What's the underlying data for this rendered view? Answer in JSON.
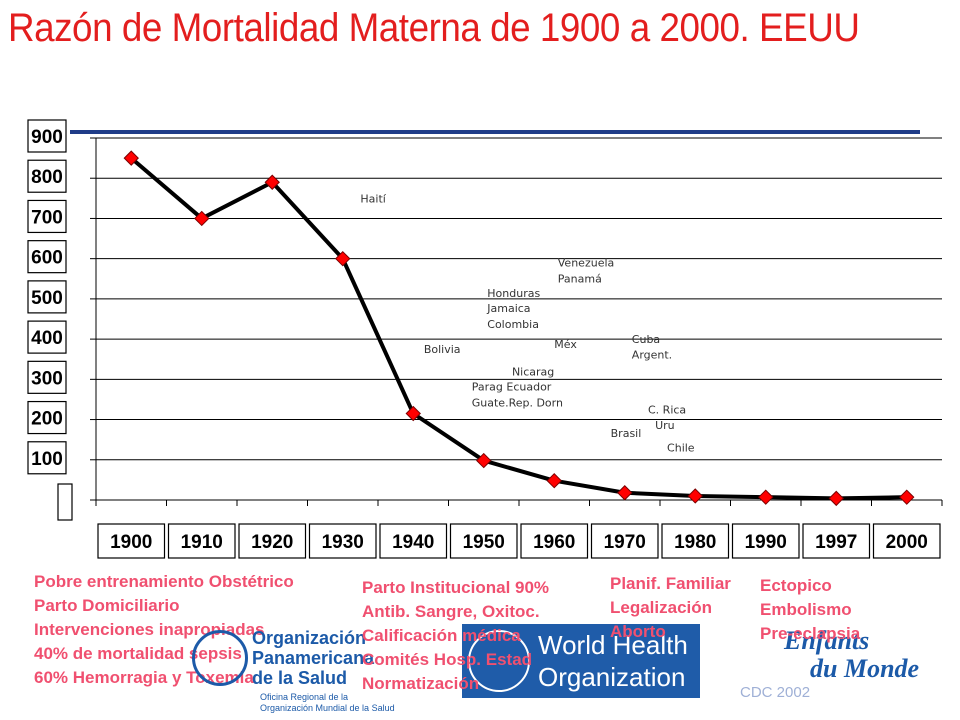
{
  "title": "Razón de Mortalidad Materna de 1900 a 2000. EEUU",
  "chart_data": {
    "type": "line",
    "categories": [
      "1900",
      "1910",
      "1920",
      "1930",
      "1940",
      "1950",
      "1960",
      "1970",
      "1980",
      "1990",
      "1997",
      "2000"
    ],
    "values": [
      850,
      700,
      790,
      600,
      215,
      98,
      48,
      18,
      10,
      7,
      4,
      7
    ],
    "ylim": [
      0,
      900
    ],
    "yticks": [
      900,
      800,
      700,
      600,
      500,
      400,
      300,
      200,
      100
    ],
    "grid": true,
    "line_color": "#000000",
    "marker_color": "#ff0000",
    "annotations": [
      {
        "text": "Haití",
        "x": 1932.5,
        "y": 740
      },
      {
        "text": "Venezuela",
        "x": 1960.5,
        "y": 580
      },
      {
        "text": "Panamá",
        "x": 1960.5,
        "y": 541
      },
      {
        "text": "Honduras",
        "x": 1950.5,
        "y": 505
      },
      {
        "text": "Jamaica",
        "x": 1950.5,
        "y": 467
      },
      {
        "text": "Colombia",
        "x": 1950.5,
        "y": 428
      },
      {
        "text": "Méx",
        "x": 1960,
        "y": 378
      },
      {
        "text": "Cuba",
        "x": 1971,
        "y": 390
      },
      {
        "text": "Argent.",
        "x": 1971,
        "y": 352
      },
      {
        "text": "Bolivia",
        "x": 1941.5,
        "y": 365
      },
      {
        "text": "Nicarag",
        "x": 1954,
        "y": 310
      },
      {
        "text": "Parag Ecuador",
        "x": 1948.3,
        "y": 272
      },
      {
        "text": "Guate.Rep. Dorn",
        "x": 1948.3,
        "y": 232
      },
      {
        "text": "C. Rica",
        "x": 1973.3,
        "y": 215
      },
      {
        "text": "Uru",
        "x": 1974.3,
        "y": 177
      },
      {
        "text": "Brasil",
        "x": 1968,
        "y": 157
      },
      {
        "text": "Chile",
        "x": 1976,
        "y": 120
      }
    ]
  },
  "notes": {
    "col1": [
      "Pobre entrenamiento Obstétrico",
      "Parto Domiciliario",
      "Intervenciones inapropiadas",
      "40% de mortalidad sepsis",
      "60% Hemorragia y Toxemia"
    ],
    "col2": [
      "Parto Institucional 90%",
      "Antib. Sangre, Oxitoc.",
      "Calificación médica",
      "Comités Hosp. Estad",
      "Normatización"
    ],
    "col3": [
      "Planif. Familiar",
      "Legalización",
      "Aborto"
    ],
    "col4": [
      "Ectopico",
      "Embolismo",
      "Pre-eclapsia"
    ]
  },
  "logos": {
    "ops": {
      "line1": "Organización",
      "line2": "Panamericana",
      "line3": "de la Salud",
      "sub1": "Oficina Regional de la",
      "sub2": "Organización Mundial de la Salud"
    },
    "who": {
      "line1": "World Health",
      "line2": "Organization"
    },
    "mdm": {
      "line1": "Enfants",
      "line2": "du Monde"
    }
  },
  "footer": "CDC 2002",
  "colors": {
    "title": "#e31e1e",
    "notes": "#f05070",
    "rule": "#1f3c88",
    "logo_blue": "#1c5aa8"
  }
}
